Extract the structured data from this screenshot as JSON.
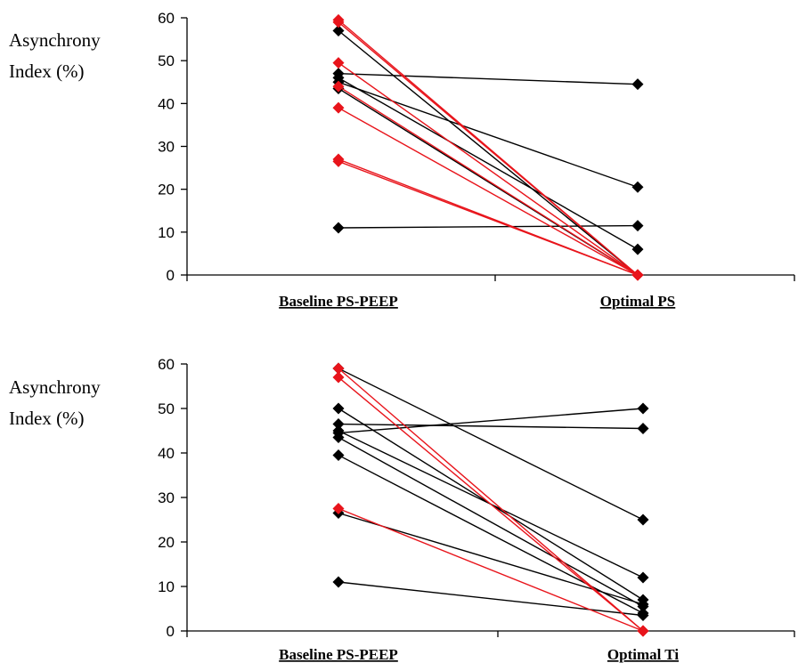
{
  "chart_data": [
    {
      "type": "line",
      "ylabel_lines": [
        "Asynchrony",
        "Index (%)"
      ],
      "categories": [
        "Baseline PS-PEEP",
        "Optimal PS"
      ],
      "ylim": [
        0,
        60
      ],
      "yticks": [
        0,
        10,
        20,
        30,
        40,
        50,
        60
      ],
      "grid": false,
      "legend": "none",
      "colors": {
        "black": "#000000",
        "red": "#e8141b"
      },
      "series": [
        {
          "color": "black",
          "values": [
            57,
            0
          ]
        },
        {
          "color": "black",
          "values": [
            47,
            44.5
          ]
        },
        {
          "color": "black",
          "values": [
            46,
            6
          ]
        },
        {
          "color": "black",
          "values": [
            45,
            20.5
          ]
        },
        {
          "color": "black",
          "values": [
            43.5,
            0
          ]
        },
        {
          "color": "black",
          "values": [
            11,
            11.5
          ]
        },
        {
          "color": "red",
          "values": [
            59.5,
            0
          ]
        },
        {
          "color": "red",
          "values": [
            59,
            0
          ]
        },
        {
          "color": "red",
          "values": [
            49.5,
            0
          ]
        },
        {
          "color": "red",
          "values": [
            44,
            0
          ]
        },
        {
          "color": "red",
          "values": [
            39,
            0
          ]
        },
        {
          "color": "red",
          "values": [
            27,
            0
          ]
        },
        {
          "color": "red",
          "values": [
            26.5,
            0
          ]
        }
      ]
    },
    {
      "type": "line",
      "ylabel_lines": [
        "Asynchrony",
        "Index (%)"
      ],
      "categories": [
        "Baseline PS-PEEP",
        "Optimal Ti"
      ],
      "ylim": [
        0,
        60
      ],
      "yticks": [
        0,
        10,
        20,
        30,
        40,
        50,
        60
      ],
      "grid": false,
      "legend": "none",
      "colors": {
        "black": "#000000",
        "red": "#e8141b"
      },
      "series": [
        {
          "color": "black",
          "values": [
            59,
            25
          ]
        },
        {
          "color": "black",
          "values": [
            50,
            7
          ]
        },
        {
          "color": "black",
          "values": [
            46.5,
            45.5
          ]
        },
        {
          "color": "black",
          "values": [
            45,
            12
          ]
        },
        {
          "color": "black",
          "values": [
            44.5,
            50
          ]
        },
        {
          "color": "black",
          "values": [
            43.5,
            5.5
          ]
        },
        {
          "color": "black",
          "values": [
            39.5,
            4
          ]
        },
        {
          "color": "black",
          "values": [
            26.5,
            6
          ]
        },
        {
          "color": "black",
          "values": [
            11,
            3.5
          ]
        },
        {
          "color": "red",
          "values": [
            59,
            0
          ]
        },
        {
          "color": "red",
          "values": [
            57,
            0
          ]
        },
        {
          "color": "red",
          "values": [
            27.5,
            0
          ]
        }
      ]
    }
  ]
}
